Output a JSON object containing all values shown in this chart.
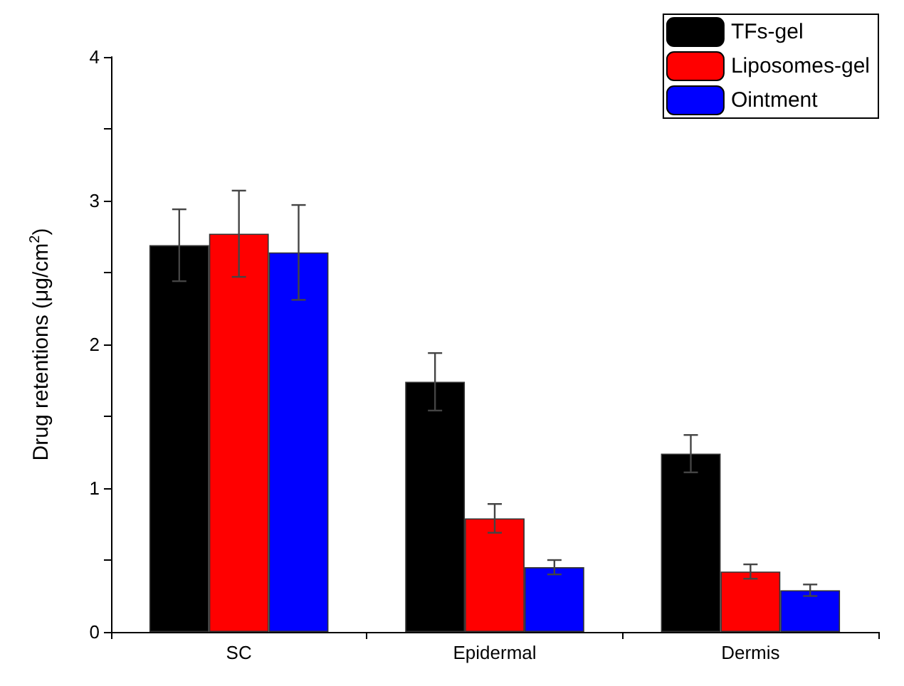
{
  "chart_data": {
    "type": "bar",
    "ylabel": "Drug retentions (μg/cm$^{2}$)",
    "categories": [
      "SC",
      "Epidermal",
      "Dermis"
    ],
    "series": [
      {
        "name": "TFs-gel",
        "color": "#000000",
        "values": [
          2.69,
          1.74,
          1.24
        ],
        "errors": [
          0.25,
          0.2,
          0.13
        ]
      },
      {
        "name": "Liposomes-gel",
        "color": "#ff0000",
        "values": [
          2.77,
          0.79,
          0.42
        ],
        "errors": [
          0.3,
          0.1,
          0.05
        ]
      },
      {
        "name": "Ointment",
        "color": "#0000ff",
        "values": [
          2.64,
          0.45,
          0.29
        ],
        "errors": [
          0.33,
          0.05,
          0.04
        ]
      }
    ],
    "ylim": [
      0,
      4
    ],
    "yticks": [
      0,
      {
        "value": 0.5,
        "label": null
      },
      1,
      {
        "value": 1.5,
        "label": null
      },
      2,
      {
        "value": 2.5,
        "label": null
      },
      3,
      {
        "value": 3.5,
        "label": null
      },
      4
    ],
    "grid": false,
    "legend": "top right"
  }
}
